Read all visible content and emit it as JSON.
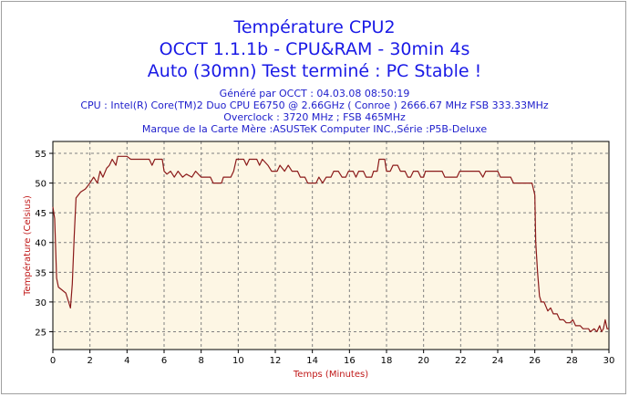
{
  "chart_data": {
    "type": "line",
    "title": [
      "Température CPU2",
      "OCCT 1.1.1b - CPU&RAM - 30min 4s",
      "Auto (30mn) Test terminé : PC Stable !"
    ],
    "subtitle": [
      "Généré par OCCT : 04.03.08 08:50:19",
      "CPU : Intel(R) Core(TM)2 Duo CPU E6750 @ 2.66GHz ( Conroe ) 2666.67 MHz FSB 333.33MHz",
      "Overclock : 3720 MHz ; FSB 465MHz",
      "Marque de la Carte Mère :ASUSTeK Computer INC.,Série :P5B-Deluxe"
    ],
    "xlabel": "Temps (Minutes)",
    "ylabel": "Température (Celsius)",
    "xlim": [
      0,
      30
    ],
    "ylim": [
      22,
      57
    ],
    "x_ticks": [
      0,
      2,
      4,
      6,
      8,
      10,
      12,
      14,
      16,
      18,
      20,
      22,
      24,
      26,
      28,
      30
    ],
    "y_ticks": [
      25,
      30,
      35,
      40,
      45,
      50,
      55
    ],
    "grid": true,
    "line_color": "#8b1a1a",
    "plot_background": "#fdf6e4",
    "series": [
      {
        "values": [
          [
            0,
            46
          ],
          [
            0.1,
            44
          ],
          [
            0.2,
            34
          ],
          [
            0.3,
            32.5
          ],
          [
            0.5,
            32
          ],
          [
            0.7,
            31.5
          ],
          [
            0.85,
            30
          ],
          [
            0.95,
            29
          ],
          [
            1.05,
            33
          ],
          [
            1.15,
            41
          ],
          [
            1.25,
            47.5
          ],
          [
            1.5,
            48.5
          ],
          [
            1.75,
            49
          ],
          [
            2.0,
            50
          ],
          [
            2.2,
            51
          ],
          [
            2.4,
            50
          ],
          [
            2.55,
            52
          ],
          [
            2.7,
            51
          ],
          [
            2.9,
            52.5
          ],
          [
            3.05,
            53
          ],
          [
            3.2,
            54
          ],
          [
            3.4,
            53
          ],
          [
            3.5,
            54.5
          ],
          [
            4.0,
            54.5
          ],
          [
            4.2,
            54
          ],
          [
            5.2,
            54
          ],
          [
            5.35,
            53
          ],
          [
            5.5,
            54
          ],
          [
            5.9,
            54
          ],
          [
            6.0,
            52
          ],
          [
            6.15,
            51.5
          ],
          [
            6.35,
            52
          ],
          [
            6.55,
            51
          ],
          [
            6.75,
            52
          ],
          [
            7.0,
            51
          ],
          [
            7.2,
            51.5
          ],
          [
            7.5,
            51
          ],
          [
            7.7,
            52
          ],
          [
            8.0,
            51
          ],
          [
            8.5,
            51
          ],
          [
            8.65,
            50
          ],
          [
            9.1,
            50
          ],
          [
            9.2,
            51
          ],
          [
            9.6,
            51
          ],
          [
            9.75,
            52
          ],
          [
            9.9,
            54
          ],
          [
            10.3,
            54
          ],
          [
            10.45,
            53
          ],
          [
            10.6,
            54
          ],
          [
            11.0,
            54
          ],
          [
            11.15,
            53
          ],
          [
            11.3,
            54
          ],
          [
            11.6,
            53
          ],
          [
            11.8,
            52
          ],
          [
            12.1,
            52
          ],
          [
            12.25,
            53
          ],
          [
            12.5,
            52
          ],
          [
            12.7,
            53
          ],
          [
            12.9,
            52
          ],
          [
            13.2,
            52
          ],
          [
            13.35,
            51
          ],
          [
            13.6,
            51
          ],
          [
            13.75,
            50
          ],
          [
            14.2,
            50
          ],
          [
            14.35,
            51
          ],
          [
            14.55,
            50
          ],
          [
            14.75,
            51
          ],
          [
            15.0,
            51
          ],
          [
            15.15,
            52
          ],
          [
            15.4,
            52
          ],
          [
            15.6,
            51
          ],
          [
            15.8,
            51
          ],
          [
            15.95,
            52
          ],
          [
            16.2,
            52
          ],
          [
            16.35,
            51
          ],
          [
            16.5,
            52
          ],
          [
            16.75,
            52
          ],
          [
            16.9,
            51
          ],
          [
            17.2,
            51
          ],
          [
            17.3,
            52
          ],
          [
            17.5,
            52
          ],
          [
            17.6,
            54
          ],
          [
            17.9,
            54
          ],
          [
            18.0,
            52
          ],
          [
            18.2,
            52
          ],
          [
            18.35,
            53
          ],
          [
            18.6,
            53
          ],
          [
            18.75,
            52
          ],
          [
            19.0,
            52
          ],
          [
            19.15,
            51
          ],
          [
            19.3,
            51
          ],
          [
            19.45,
            52
          ],
          [
            19.7,
            52
          ],
          [
            19.85,
            51
          ],
          [
            20.0,
            51
          ],
          [
            20.1,
            52
          ],
          [
            21.0,
            52
          ],
          [
            21.15,
            51
          ],
          [
            21.8,
            51
          ],
          [
            21.95,
            52
          ],
          [
            22.5,
            52
          ],
          [
            22.65,
            52
          ],
          [
            23.0,
            52
          ],
          [
            23.2,
            51
          ],
          [
            23.35,
            52
          ],
          [
            24.0,
            52
          ],
          [
            24.15,
            51
          ],
          [
            24.7,
            51
          ],
          [
            24.85,
            50
          ],
          [
            25.85,
            50
          ],
          [
            26.0,
            48
          ],
          [
            26.05,
            40
          ],
          [
            26.15,
            35
          ],
          [
            26.25,
            31
          ],
          [
            26.35,
            30
          ],
          [
            26.5,
            30
          ],
          [
            26.7,
            28.5
          ],
          [
            26.85,
            29
          ],
          [
            27.0,
            28
          ],
          [
            27.2,
            28
          ],
          [
            27.35,
            27
          ],
          [
            27.55,
            27
          ],
          [
            27.7,
            26.5
          ],
          [
            27.9,
            26.5
          ],
          [
            28.05,
            27
          ],
          [
            28.2,
            26
          ],
          [
            28.45,
            26
          ],
          [
            28.6,
            25.5
          ],
          [
            28.9,
            25.5
          ],
          [
            29.0,
            25
          ],
          [
            29.2,
            25.5
          ],
          [
            29.35,
            25
          ],
          [
            29.5,
            26
          ],
          [
            29.6,
            25
          ],
          [
            29.7,
            25.5
          ],
          [
            29.8,
            27
          ],
          [
            29.9,
            25.5
          ],
          [
            30,
            25.5
          ]
        ]
      }
    ]
  }
}
